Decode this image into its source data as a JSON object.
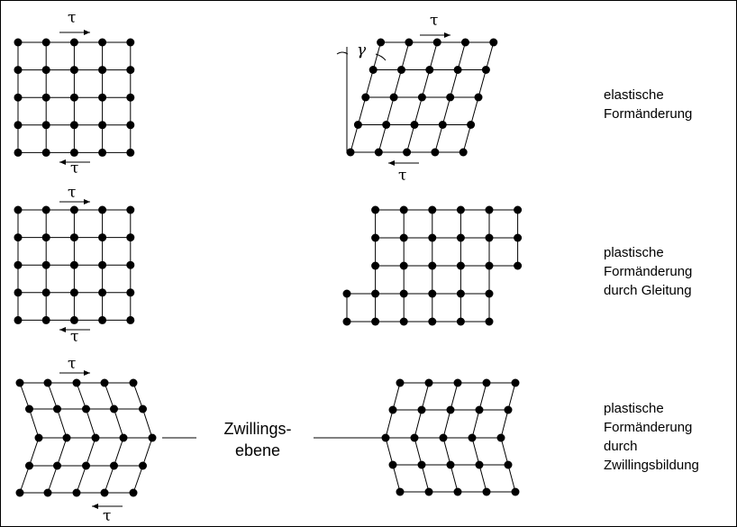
{
  "symbols": {
    "tau": "τ",
    "gamma": "γ"
  },
  "rows": [
    {
      "label_lines": [
        "elastische",
        "Formänderung"
      ]
    },
    {
      "label_lines": [
        "plastische",
        "Formänderung",
        "durch Gleitung"
      ]
    },
    {
      "label_lines": [
        "plastische",
        "Formänderung",
        "durch",
        "Zwillingsbildung"
      ]
    }
  ],
  "twin_plane_label": [
    "Zwillings-",
    "ebene"
  ]
}
